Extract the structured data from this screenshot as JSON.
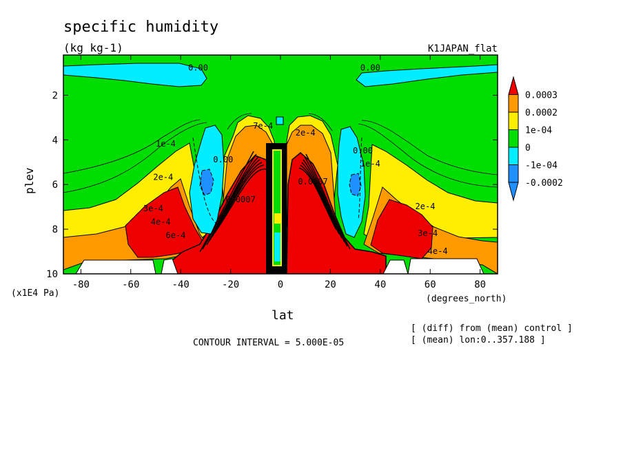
{
  "chart_data": {
    "type": "contour",
    "title": "specific humidity",
    "units": "(kg kg-1)",
    "experiment": "K1JAPAN_flat",
    "xlabel": "lat",
    "xunits": "(degrees_north)",
    "ylabel": "plev",
    "yunits": "(x1E4 Pa)",
    "xlim": [
      -87,
      87
    ],
    "ylim": [
      10,
      0.2
    ],
    "xticks": [
      -80,
      -60,
      -40,
      -20,
      0,
      20,
      40,
      60,
      80
    ],
    "xtick_labels": [
      "-80",
      "-60",
      "-40",
      "-20",
      "0",
      "20",
      "40",
      "60",
      "80"
    ],
    "yticks": [
      2,
      4,
      6,
      8,
      10
    ],
    "ytick_labels": [
      "2",
      "4",
      "6",
      "8",
      "10"
    ],
    "contour_interval_text": "CONTOUR INTERVAL = 5.000E-05",
    "notes": [
      "[ (diff) from (mean) control ]",
      "[ (mean) lon:0..357.188 ]"
    ],
    "levels": [
      {
        "label": "0.0003",
        "color": "#ee0000"
      },
      {
        "label": "0.0002",
        "color": "#ff9900"
      },
      {
        "label": "1e-04",
        "color": "#ffee00"
      },
      {
        "label": "0",
        "color": "#00dd00"
      },
      {
        "label": "-1e-04",
        "color": "#00eeff"
      },
      {
        "label": "-0.0002",
        "color": "#1e90ff"
      }
    ],
    "contour_labels": [
      {
        "text": "0.00",
        "lat": -33,
        "p": 0.9
      },
      {
        "text": "0.00",
        "lat": 36,
        "p": 0.9
      },
      {
        "text": "1e-4",
        "lat": -46,
        "p": 4.3
      },
      {
        "text": "2e-4",
        "lat": -47,
        "p": 5.8
      },
      {
        "text": "3e-4",
        "lat": -51,
        "p": 7.2
      },
      {
        "text": "4e-4",
        "lat": -48,
        "p": 7.8
      },
      {
        "text": "6e-4",
        "lat": -42,
        "p": 8.4
      },
      {
        "text": "0.00",
        "lat": -23,
        "p": 5.0
      },
      {
        "text": "7e-4",
        "lat": -7,
        "p": 3.5
      },
      {
        "text": "2e-4",
        "lat": 10,
        "p": 3.8
      },
      {
        "text": "0.00",
        "lat": 33,
        "p": 4.6
      },
      {
        "text": "1e-4",
        "lat": 36,
        "p": 5.2
      },
      {
        "text": "2e-4",
        "lat": 58,
        "p": 7.1
      },
      {
        "text": "3e-4",
        "lat": 59,
        "p": 8.3
      },
      {
        "text": "4e-4",
        "lat": 63,
        "p": 9.1
      },
      {
        "text": "0.0007",
        "lat": -16,
        "p": 6.8
      },
      {
        "text": "0.0007",
        "lat": 13,
        "p": 6.0
      }
    ]
  }
}
